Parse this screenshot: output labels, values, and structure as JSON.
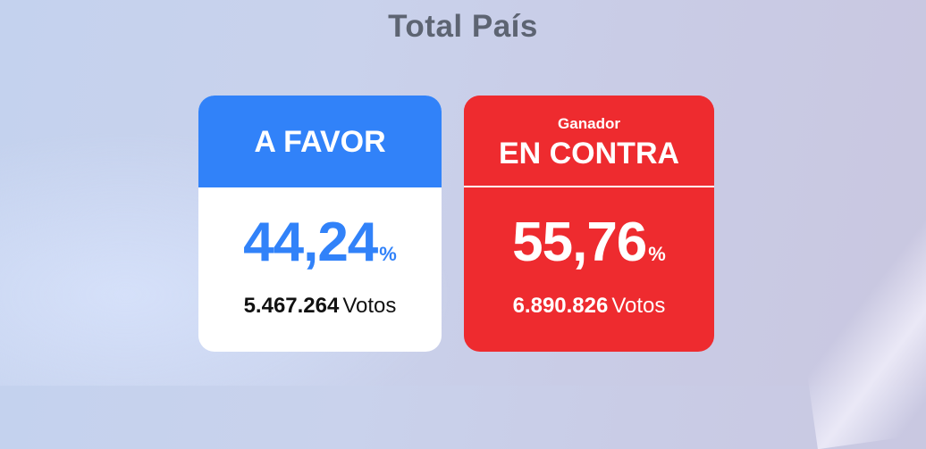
{
  "title": "Total País",
  "colors": {
    "favor": "#3182f9",
    "contra": "#ee2b2f",
    "title_text": "#5d6472"
  },
  "cards": [
    {
      "label": "A FAVOR",
      "winner_tag": "",
      "percent": "44,24",
      "percent_symbol": "%",
      "votes": "5.467.264",
      "votes_label": "Votos"
    },
    {
      "label": "EN CONTRA",
      "winner_tag": "Ganador",
      "percent": "55,76",
      "percent_symbol": "%",
      "votes": "6.890.826",
      "votes_label": "Votos"
    }
  ]
}
